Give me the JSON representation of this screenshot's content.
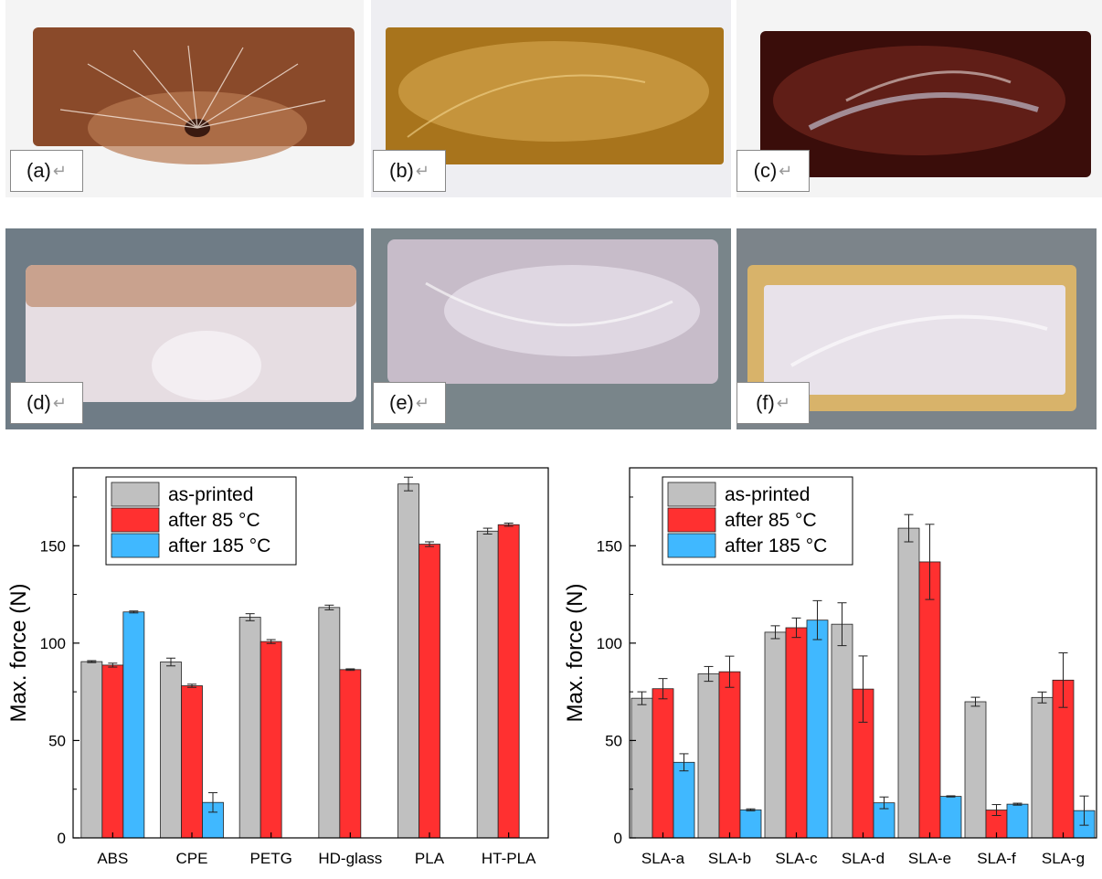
{
  "photos": [
    {
      "label": "(a)",
      "return_mark": "↵",
      "colors": [
        "#8a4a2a",
        "#b97a52",
        "#f2f2f2"
      ]
    },
    {
      "label": "(b)",
      "return_mark": "↵",
      "colors": [
        "#a8741c",
        "#d2a24a",
        "#eeeef2"
      ]
    },
    {
      "label": "(c)",
      "return_mark": "↵",
      "colors": [
        "#3a0d0a",
        "#7a2a20",
        "#f4f4f4"
      ]
    },
    {
      "label": "(d)",
      "return_mark": "↵",
      "colors": [
        "#c9b5b2",
        "#e6dde2",
        "#6f7c86"
      ]
    },
    {
      "label": "(e)",
      "return_mark": "↵",
      "colors": [
        "#c7bcc9",
        "#e9e3ec",
        "#79858a"
      ]
    },
    {
      "label": "(f)",
      "return_mark": "↵",
      "colors": [
        "#d8b36a",
        "#e8e2ea",
        "#7c848a"
      ]
    }
  ],
  "chart_data": [
    {
      "type": "bar",
      "categories": [
        "ABS",
        "CPE",
        "PETG",
        "HD-glass",
        "PLA",
        "HT-PLA"
      ],
      "series": [
        {
          "name": "as-printed",
          "color": "#c0c0c0",
          "values": [
            90.5,
            90.3,
            113.3,
            118.3,
            181.7,
            157.5
          ],
          "errors": [
            0.5,
            2.0,
            1.8,
            1.2,
            3.5,
            1.5
          ]
        },
        {
          "name": "after 85 °C",
          "color": "#ff3030",
          "values": [
            88.7,
            78.1,
            100.8,
            86.4,
            150.8,
            160.8
          ],
          "errors": [
            1.0,
            0.8,
            1.0,
            0.4,
            1.2,
            0.8
          ]
        },
        {
          "name": "after 185 °C",
          "color": "#40b8ff",
          "values": [
            116.0,
            18.2,
            null,
            null,
            null,
            null
          ],
          "errors": [
            0.5,
            5.0,
            null,
            null,
            null,
            null
          ]
        }
      ],
      "ylabel": "Max. force (N)",
      "ylim": [
        0,
        190
      ],
      "yticks": [
        0,
        50,
        100,
        150
      ],
      "legend": "top-left"
    },
    {
      "type": "bar",
      "categories": [
        "SLA-a",
        "SLA-b",
        "SLA-c",
        "SLA-d",
        "SLA-e",
        "SLA-f",
        "SLA-g"
      ],
      "series": [
        {
          "name": "as-printed",
          "color": "#c0c0c0",
          "values": [
            71.7,
            84.2,
            105.6,
            109.7,
            159.0,
            69.9,
            72.1
          ],
          "errors": [
            3.3,
            3.8,
            3.3,
            11.0,
            7.0,
            2.3,
            2.8
          ]
        },
        {
          "name": "after 85 °C",
          "color": "#ff3030",
          "values": [
            76.6,
            85.3,
            107.9,
            76.4,
            141.7,
            14.3,
            81.0
          ],
          "errors": [
            5.2,
            8.0,
            5.0,
            17.0,
            19.3,
            2.8,
            14.0
          ]
        },
        {
          "name": "after 185 °C",
          "color": "#40b8ff",
          "values": [
            38.8,
            14.4,
            111.8,
            18.0,
            21.3,
            17.3,
            14.0
          ],
          "errors": [
            4.4,
            0.5,
            10.0,
            3.0,
            0.3,
            0.5,
            7.5
          ]
        }
      ],
      "ylabel": "Max. force (N)",
      "ylim": [
        0,
        190
      ],
      "yticks": [
        0,
        50,
        100,
        150
      ],
      "legend": "top-left"
    }
  ]
}
